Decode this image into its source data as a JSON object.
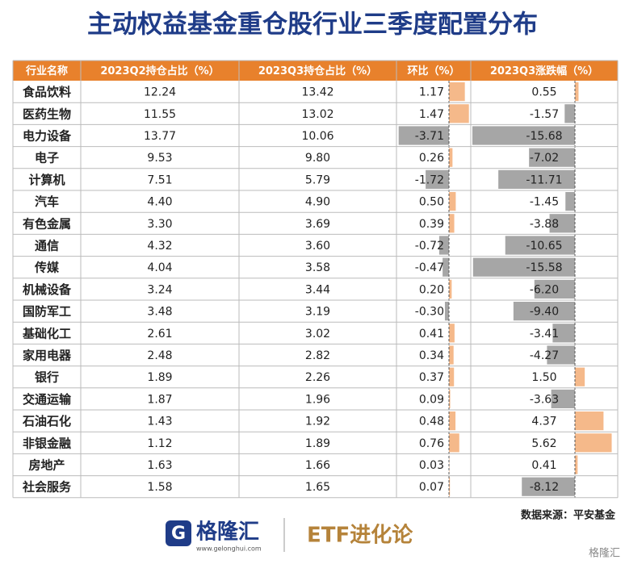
{
  "title": "主动权益基金重仓股行业三季度配置分布",
  "table": {
    "header": [
      "行业名称",
      "2023Q2持仓占比（%）",
      "2023Q3持仓占比（%）",
      "环比（%）",
      "2023Q3涨跌幅（%）"
    ],
    "rows": [
      [
        "食品饮料",
        "12.24",
        "13.42",
        "1.17",
        "0.55"
      ],
      [
        "医药生物",
        "11.55",
        "13.02",
        "1.47",
        "-1.57"
      ],
      [
        "电力设备",
        "13.77",
        "10.06",
        "-3.71",
        "-15.68"
      ],
      [
        "电子",
        "9.53",
        "9.80",
        "0.26",
        "-7.02"
      ],
      [
        "计算机",
        "7.51",
        "5.79",
        "-1.72",
        "-11.71"
      ],
      [
        "汽车",
        "4.40",
        "4.90",
        "0.50",
        "-1.45"
      ],
      [
        "有色金属",
        "3.30",
        "3.69",
        "0.39",
        "-3.88"
      ],
      [
        "通信",
        "4.32",
        "3.60",
        "-0.72",
        "-10.65"
      ],
      [
        "传媒",
        "4.04",
        "3.58",
        "-0.47",
        "-15.58"
      ],
      [
        "机械设备",
        "3.24",
        "3.44",
        "0.20",
        "-6.20"
      ],
      [
        "国防军工",
        "3.48",
        "3.19",
        "-0.30",
        "-9.40"
      ],
      [
        "基础化工",
        "2.61",
        "3.02",
        "0.41",
        "-3.41"
      ],
      [
        "家用电器",
        "2.48",
        "2.82",
        "0.34",
        "-4.27"
      ],
      [
        "银行",
        "1.89",
        "2.26",
        "0.37",
        "1.50"
      ],
      [
        "交通运输",
        "1.87",
        "1.96",
        "0.09",
        "-3.63"
      ],
      [
        "石油石化",
        "1.43",
        "1.92",
        "0.48",
        "4.37"
      ],
      [
        "非银金融",
        "1.12",
        "1.89",
        "0.76",
        "5.62"
      ],
      [
        "房地产",
        "1.63",
        "1.66",
        "0.03",
        "0.41"
      ],
      [
        "社会服务",
        "1.58",
        "1.65",
        "0.07",
        "-8.12"
      ]
    ]
  },
  "source": "数据来源：平安基金",
  "footer": {
    "brand": "格隆汇",
    "url": "www.gelonghui.com",
    "column": "ETF进化论",
    "watermark": "格隆汇"
  }
}
